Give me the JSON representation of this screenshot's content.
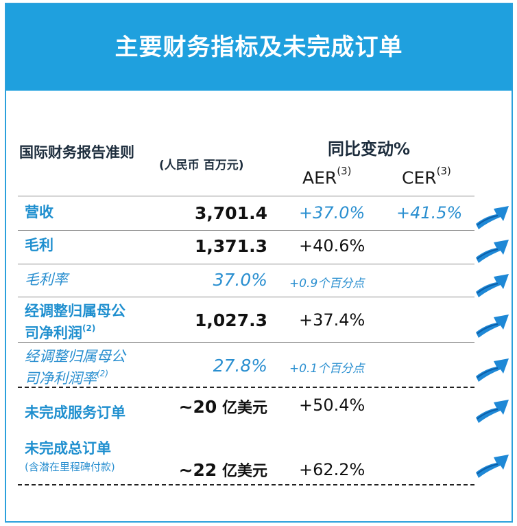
{
  "title": "主要财务指标及未完成订单",
  "header": {
    "standard": "国际财务报告准则",
    "unit": "(人民币 百万元)",
    "yoy_label": "同比变动%",
    "aer_label": "AER",
    "cer_label": "CER",
    "note_mark": "(3)"
  },
  "rows": [
    {
      "label": "营收",
      "value": "3,701.4",
      "aer": "+37.0%",
      "cer": "+41.5%"
    },
    {
      "label": "毛利",
      "value": "1,371.3",
      "aer": "+40.6%"
    },
    {
      "label": "毛利率",
      "value": "37.0%",
      "aer": "+0.9个百分点"
    },
    {
      "label_1": "经调整归属母公",
      "label_2": "司净利润",
      "note": "(2)",
      "value": "1,027.3",
      "aer": "+37.4%"
    },
    {
      "label_1": "经调整归属母公",
      "label_2": "司净利润率",
      "note": "(2)",
      "value": "27.8%",
      "aer": "+0.1个百分点"
    },
    {
      "label": "未完成服务订单",
      "value_num": "~20",
      "value_unit": " 亿美元",
      "aer": "+50.4%"
    },
    {
      "label": "未完成总订单",
      "sub": "(含潜在里程碑付款)",
      "value_num": "~22",
      "value_unit": " 亿美元",
      "aer": "+62.2%"
    }
  ],
  "colors": {
    "banner": "#1fa0de",
    "accent": "#2a8fd0",
    "arrow": "#1e88d6"
  },
  "icons": {
    "trend": "up-trend-arrow-icon"
  }
}
